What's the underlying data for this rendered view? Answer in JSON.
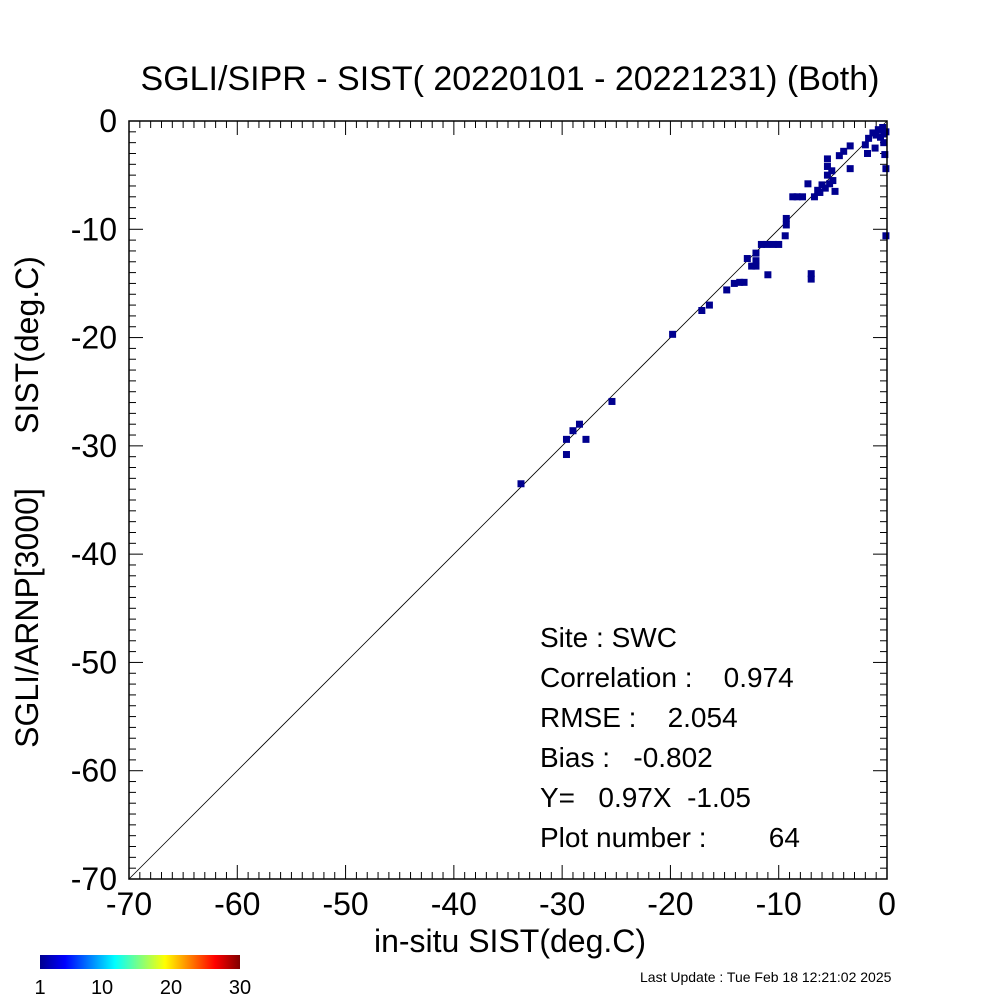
{
  "chart_data": {
    "type": "scatter",
    "title": "SGLI/SIPR - SIST( 20220101 - 20221231) (Both)",
    "xlabel": "in-situ SIST(deg.C)",
    "ylabel_lines": [
      "SGLI/ARNP[3000]",
      "SIST(deg.C)"
    ],
    "xlim": [
      -70,
      0
    ],
    "ylim": [
      -70,
      0
    ],
    "xticks": [
      -70,
      -60,
      -50,
      -40,
      -30,
      -20,
      -10,
      0
    ],
    "yticks": [
      -70,
      -60,
      -50,
      -40,
      -30,
      -20,
      -10,
      0
    ],
    "xtick_labels": [
      "-70",
      "-60",
      "-50",
      "-40",
      "-30",
      "-20",
      "-10",
      "0"
    ],
    "ytick_labels": [
      "-70",
      "-60",
      "-50",
      "-40",
      "-30",
      "-20",
      "-10",
      "0"
    ],
    "grid": false,
    "reference_line": "y = x",
    "points": [
      [
        -33.8,
        -33.5
      ],
      [
        -29.6,
        -29.4
      ],
      [
        -29.6,
        -30.8
      ],
      [
        -29.0,
        -28.6
      ],
      [
        -28.4,
        -28.0
      ],
      [
        -27.8,
        -29.4
      ],
      [
        -25.4,
        -25.9
      ],
      [
        -19.8,
        -19.7
      ],
      [
        -17.1,
        -17.5
      ],
      [
        -16.4,
        -17.0
      ],
      [
        -14.8,
        -15.6
      ],
      [
        -14.1,
        -15.0
      ],
      [
        -13.6,
        -14.9
      ],
      [
        -13.2,
        -14.9
      ],
      [
        -12.9,
        -12.7
      ],
      [
        -12.5,
        -13.4
      ],
      [
        -12.1,
        -13.4
      ],
      [
        -12.1,
        -12.2
      ],
      [
        -12.1,
        -12.9
      ],
      [
        -11.6,
        -11.4
      ],
      [
        -11.1,
        -11.4
      ],
      [
        -11.0,
        -14.2
      ],
      [
        -10.5,
        -11.4
      ],
      [
        -10.0,
        -11.4
      ],
      [
        -9.4,
        -10.6
      ],
      [
        -9.3,
        -9.0
      ],
      [
        -9.3,
        -9.6
      ],
      [
        -8.7,
        -7.0
      ],
      [
        -8.3,
        -7.0
      ],
      [
        -7.8,
        -7.0
      ],
      [
        -7.3,
        -5.8
      ],
      [
        -7.0,
        -14.1
      ],
      [
        -7.0,
        -14.6
      ],
      [
        -6.7,
        -7.0
      ],
      [
        -6.4,
        -6.4
      ],
      [
        -6.2,
        -6.6
      ],
      [
        -6.0,
        -5.9
      ],
      [
        -5.7,
        -6.2
      ],
      [
        -5.5,
        -3.5
      ],
      [
        -5.5,
        -4.2
      ],
      [
        -5.5,
        -5.0
      ],
      [
        -5.3,
        -5.8
      ],
      [
        -5.1,
        -4.6
      ],
      [
        -5.0,
        -5.5
      ],
      [
        -4.8,
        -6.5
      ],
      [
        -4.4,
        -3.2
      ],
      [
        -4.0,
        -2.8
      ],
      [
        -3.4,
        -4.4
      ],
      [
        -3.4,
        -2.3
      ],
      [
        -2.0,
        -2.2
      ],
      [
        -1.8,
        -3.0
      ],
      [
        -1.7,
        -1.6
      ],
      [
        -1.3,
        -1.1
      ],
      [
        -1.1,
        -2.5
      ],
      [
        -1.0,
        -1.3
      ],
      [
        -0.8,
        -0.8
      ],
      [
        -0.6,
        -1.5
      ],
      [
        -0.4,
        -0.6
      ],
      [
        -0.3,
        -1.2
      ],
      [
        -0.1,
        -1.0
      ],
      [
        -0.2,
        -3.1
      ],
      [
        -0.1,
        -4.4
      ],
      [
        -0.1,
        -10.6
      ],
      [
        -0.3,
        -2.0
      ]
    ],
    "point_color": "#00008f",
    "colorbar": {
      "colormap": "jet",
      "range": [
        1,
        30
      ],
      "tick_labels": [
        "1",
        "10",
        "20",
        "30"
      ]
    },
    "stats": {
      "site": "Site : SWC",
      "correlation": "Correlation :    0.974",
      "rmse": "RMSE :    2.054",
      "bias": "Bias :   -0.802",
      "regression": "Y=   0.97X  -1.05",
      "plot_number": "Plot number :        64"
    }
  },
  "footer": {
    "last_update": "Last Update : Tue Feb 18 12:21:02 2025"
  }
}
